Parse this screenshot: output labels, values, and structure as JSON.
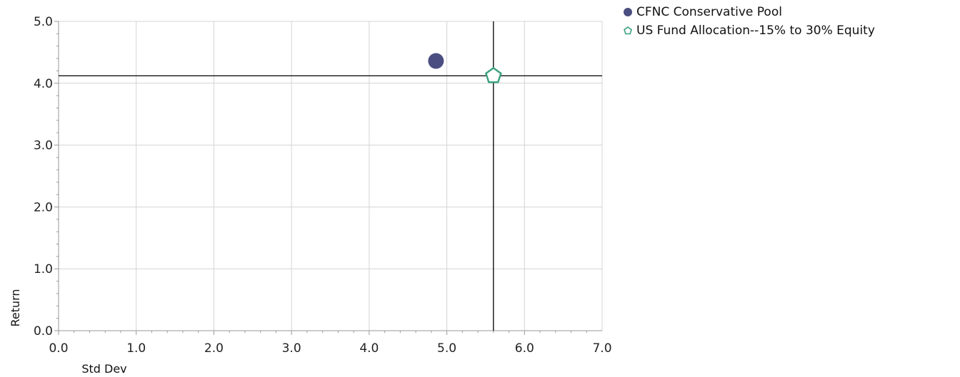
{
  "chart_data": {
    "type": "scatter",
    "xlabel": "Std Dev",
    "ylabel": "Return",
    "xlim": [
      0,
      7
    ],
    "ylim": [
      0,
      5
    ],
    "x_ticks": [
      "0.0",
      "1.0",
      "2.0",
      "3.0",
      "4.0",
      "5.0",
      "6.0",
      "7.0"
    ],
    "y_ticks": [
      "0.0",
      "1.0",
      "2.0",
      "3.0",
      "4.0",
      "5.0"
    ],
    "grid": true,
    "legend_position": "top-right",
    "series": [
      {
        "name": "CFNC Conservative Pool",
        "marker": "circle",
        "color": "#4a4e80",
        "points": [
          {
            "x": 4.86,
            "y": 4.36
          }
        ]
      },
      {
        "name": "US Fund Allocation--15% to 30% Equity",
        "marker": "pentagon",
        "color": "#3aa07c",
        "points": [
          {
            "x": 5.6,
            "y": 4.12
          }
        ]
      }
    ],
    "reference_lines": {
      "x": 5.6,
      "y": 4.12,
      "color": "#000000"
    }
  }
}
